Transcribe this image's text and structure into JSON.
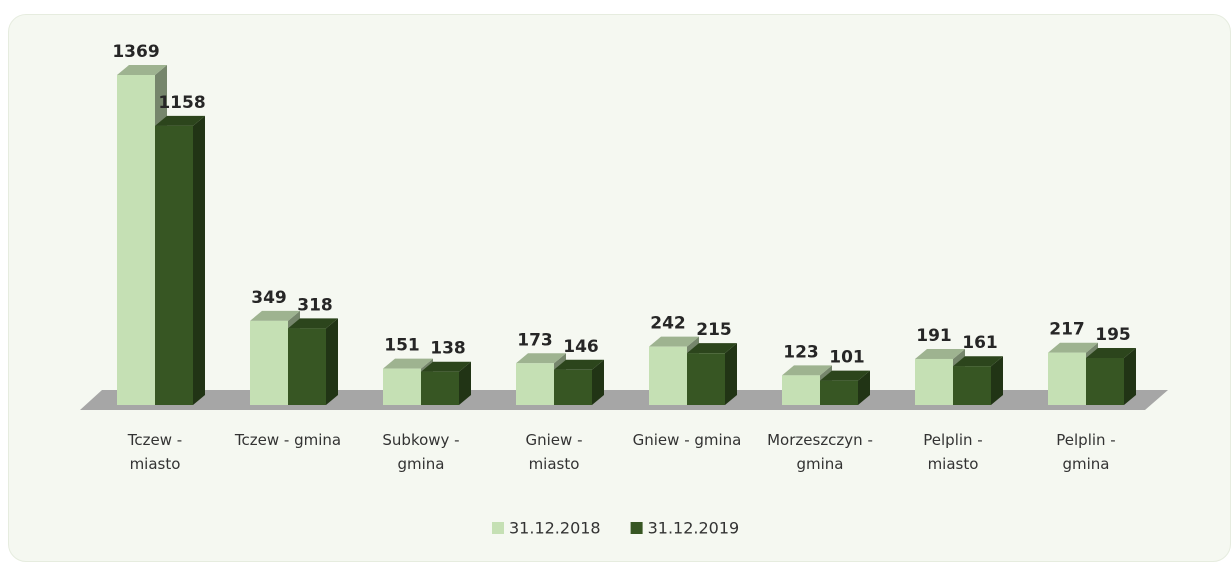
{
  "chart_data": {
    "type": "bar3d",
    "categories": [
      "Tczew - miasto",
      "Tczew - gmina",
      "Subkowy - gmina",
      "Gniew - miasto",
      "Gniew - gmina",
      "Morzeszczyn - gmina",
      "Pelplin - miasto",
      "Pelplin - gmina"
    ],
    "series": [
      {
        "name": "31.12.2018",
        "color": "#c5e0b4",
        "values": [
          1369,
          349,
          151,
          173,
          242,
          123,
          191,
          217
        ]
      },
      {
        "name": "31.12.2019",
        "color": "#375623",
        "values": [
          1158,
          318,
          138,
          146,
          215,
          101,
          161,
          195
        ]
      }
    ],
    "legend": "bottom"
  }
}
